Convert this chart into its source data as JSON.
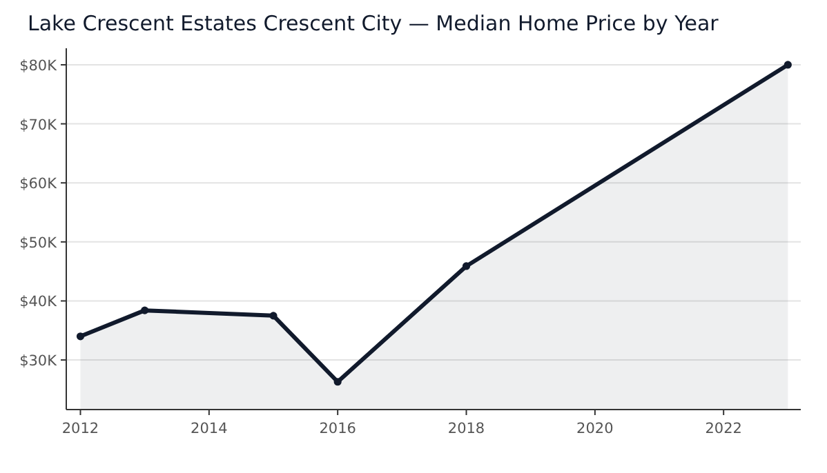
{
  "chart_data": {
    "type": "area",
    "title": "Lake Crescent Estates Crescent City — Median Home Price by Year",
    "x": [
      2012,
      2013,
      2015,
      2016,
      2018,
      2023
    ],
    "series": [
      {
        "color": "#111a2c",
        "values": [
          34,
          38.4,
          37.5,
          26.3,
          45.9,
          80
        ]
      }
    ],
    "xlim": [
      2011.78,
      2023.2
    ],
    "xticks": [
      2012,
      2014,
      2016,
      2018,
      2020,
      2022
    ],
    "ylim": [
      21.6,
      82.8
    ],
    "yticks": [
      {
        "value": 30,
        "label": "$30K"
      },
      {
        "value": 40,
        "label": "$40K"
      },
      {
        "value": 50,
        "label": "$50K"
      },
      {
        "value": 60,
        "label": "$60K"
      },
      {
        "value": 70,
        "label": "$70K"
      },
      {
        "value": 80,
        "label": "$80K"
      }
    ],
    "grid": "y",
    "marker": "circle",
    "line_style": "solid"
  }
}
